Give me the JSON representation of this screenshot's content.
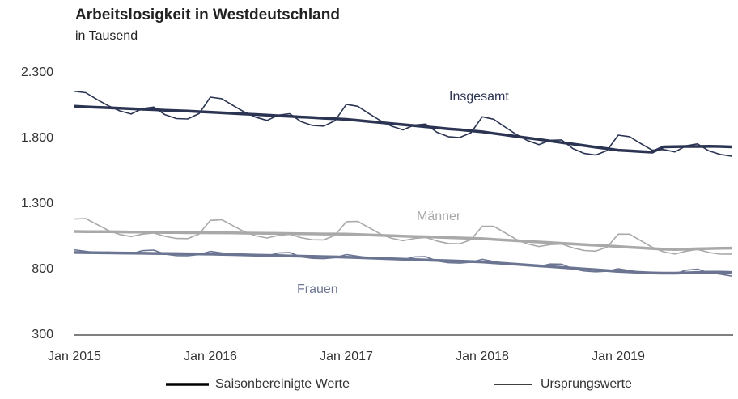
{
  "chart_data": {
    "type": "line",
    "title": "Arbeitslosigkeit in Westdeutschland",
    "subtitle": "in Tausend",
    "categories": [
      "Jan 2015",
      null,
      null,
      null,
      null,
      null,
      null,
      null,
      null,
      null,
      null,
      null,
      "Jan 2016",
      null,
      null,
      null,
      null,
      null,
      null,
      null,
      null,
      null,
      null,
      null,
      "Jan 2017",
      null,
      null,
      null,
      null,
      null,
      null,
      null,
      null,
      null,
      null,
      null,
      "Jan 2018",
      null,
      null,
      null,
      null,
      null,
      null,
      null,
      null,
      null,
      null,
      null,
      "Jan 2019",
      null,
      null,
      null,
      null,
      null,
      null,
      null,
      null,
      null,
      null
    ],
    "ylim": [
      300,
      2300
    ],
    "yticks": [
      300,
      {
        "value": 800,
        "label": "800"
      },
      {
        "value": 1300,
        "label": "1.300"
      },
      {
        "value": 1800,
        "label": "1.800"
      },
      {
        "value": 2300,
        "label": "2.300"
      }
    ],
    "legend": [
      "Saisonbereinigte Werte",
      "Ursprungswerte"
    ],
    "line_widths": [
      3.5,
      1.6
    ],
    "legend_color": "#000000",
    "series": [
      {
        "name": "Insgesamt",
        "color": "#2b3452",
        "values": [
          2045,
          2041,
          2037,
          2034,
          2030,
          2026,
          2022,
          2019,
          2015,
          2011,
          2008,
          2004,
          2000,
          1995,
          1991,
          1986,
          1982,
          1977,
          1972,
          1968,
          1963,
          1959,
          1954,
          1950,
          1945,
          1937,
          1929,
          1921,
          1913,
          1905,
          1897,
          1889,
          1881,
          1873,
          1866,
          1858,
          1850,
          1838,
          1827,
          1815,
          1803,
          1792,
          1780,
          1768,
          1757,
          1745,
          1733,
          1722,
          1710,
          1705,
          1700,
          1695,
          1735,
          1737,
          1738,
          1738,
          1740,
          1738,
          1735
        ],
        "original_values": [
          2160,
          2149,
          2097,
          2049,
          2010,
          1986,
          2027,
          2039,
          1980,
          1951,
          1948,
          1989,
          2115,
          2103,
          2051,
          2001,
          1962,
          1937,
          1977,
          1988,
          1928,
          1899,
          1894,
          1935,
          2060,
          2045,
          1989,
          1936,
          1893,
          1865,
          1902,
          1909,
          1846,
          1813,
          1806,
          1843,
          1965,
          1946,
          1887,
          1830,
          1783,
          1752,
          1785,
          1788,
          1722,
          1685,
          1673,
          1707,
          1825,
          1813,
          1760,
          1710,
          1715,
          1697,
          1743,
          1758,
          1705,
          1678,
          1665
        ]
      },
      {
        "name": "Männer",
        "color": "#a9a9a9",
        "values": [
          1090,
          1089,
          1088,
          1088,
          1087,
          1086,
          1085,
          1084,
          1083,
          1082,
          1081,
          1081,
          1080,
          1080,
          1079,
          1078,
          1077,
          1076,
          1075,
          1074,
          1073,
          1072,
          1071,
          1071,
          1070,
          1067,
          1064,
          1061,
          1058,
          1055,
          1052,
          1050,
          1047,
          1044,
          1041,
          1038,
          1035,
          1030,
          1025,
          1020,
          1015,
          1010,
          1005,
          1000,
          995,
          990,
          985,
          980,
          975,
          970,
          965,
          960,
          955,
          953,
          955,
          958,
          960,
          962,
          963
        ],
        "original_values": [
          1185,
          1189,
          1143,
          1098,
          1067,
          1051,
          1070,
          1079,
          1053,
          1037,
          1036,
          1071,
          1175,
          1180,
          1134,
          1088,
          1057,
          1041,
          1060,
          1069,
          1043,
          1027,
          1026,
          1061,
          1165,
          1167,
          1119,
          1071,
          1038,
          1020,
          1037,
          1045,
          1017,
          999,
          996,
          1028,
          1130,
          1130,
          1080,
          1030,
          995,
          975,
          990,
          995,
          965,
          945,
          940,
          970,
          1070,
          1070,
          1020,
          970,
          935,
          918,
          940,
          953,
          930,
          917,
          918
        ]
      },
      {
        "name": "Frauen",
        "color": "#6b7592",
        "values": [
          930,
          929,
          928,
          927,
          926,
          925,
          924,
          923,
          922,
          921,
          920,
          919,
          918,
          916,
          914,
          912,
          910,
          908,
          906,
          904,
          902,
          900,
          898,
          896,
          894,
          891,
          888,
          885,
          882,
          879,
          876,
          873,
          870,
          867,
          864,
          861,
          858,
          852,
          846,
          840,
          834,
          828,
          822,
          816,
          810,
          804,
          798,
          792,
          786,
          782,
          778,
          774,
          772,
          772,
          775,
          778,
          780,
          780,
          778
        ],
        "original_values": [
          950,
          939,
          928,
          932,
          926,
          920,
          944,
          948,
          917,
          906,
          905,
          914,
          938,
          926,
          914,
          917,
          910,
          903,
          926,
          929,
          897,
          885,
          883,
          891,
          914,
          901,
          888,
          890,
          882,
          874,
          896,
          898,
          865,
          852,
          849,
          856,
          878,
          862,
          846,
          845,
          834,
          823,
          842,
          841,
          805,
          789,
          783,
          787,
          806,
          792,
          778,
          779,
          772,
          767,
          795,
          803,
          775,
          765,
          750
        ]
      }
    ]
  }
}
